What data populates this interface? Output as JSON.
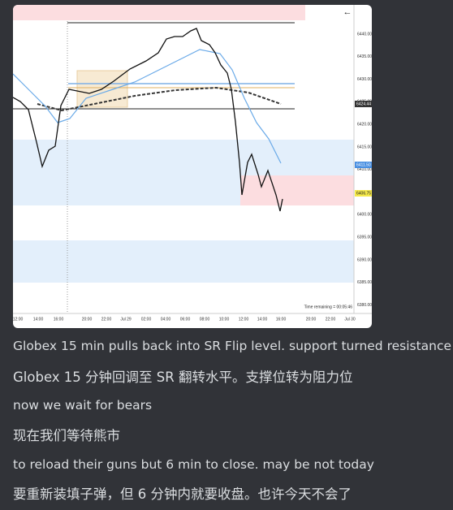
{
  "chart_image": {
    "back_icon": "←",
    "y_labels": [
      "6440.00",
      "6435.00",
      "6430.00",
      "6425.00",
      "6420.00",
      "6415.00",
      "6410.00",
      "6405.00",
      "6400.00",
      "6395.00",
      "6390.00",
      "6385.00",
      "6380.00"
    ],
    "price_tags": [
      "6424.44",
      "6411.50",
      "6406.75"
    ],
    "x_labels": [
      "12:00",
      "14:00",
      "16:00",
      "20:00",
      "22:00",
      "Jul 29",
      "02:00",
      "04:00",
      "06:00",
      "08:00",
      "10:00",
      "12:00",
      "14:00",
      "16:00",
      "20:00",
      "22:00",
      "Jul 30"
    ],
    "time_remaining": "Time remaining = 00:05:46"
  },
  "messages": [
    "Globex 15 min pulls back into SR Flip level. support turned resistance",
    "Globex 15 分钟回调至 SR 翻转水平。支撑位转为阻力位",
    "now we wait for bears",
    "现在我们等待熊市",
    "to reload their guns but 6 min to close. may be not today",
    "要重新装填子弹，但 6 分钟内就要收盘。也许今天不会了"
  ]
}
